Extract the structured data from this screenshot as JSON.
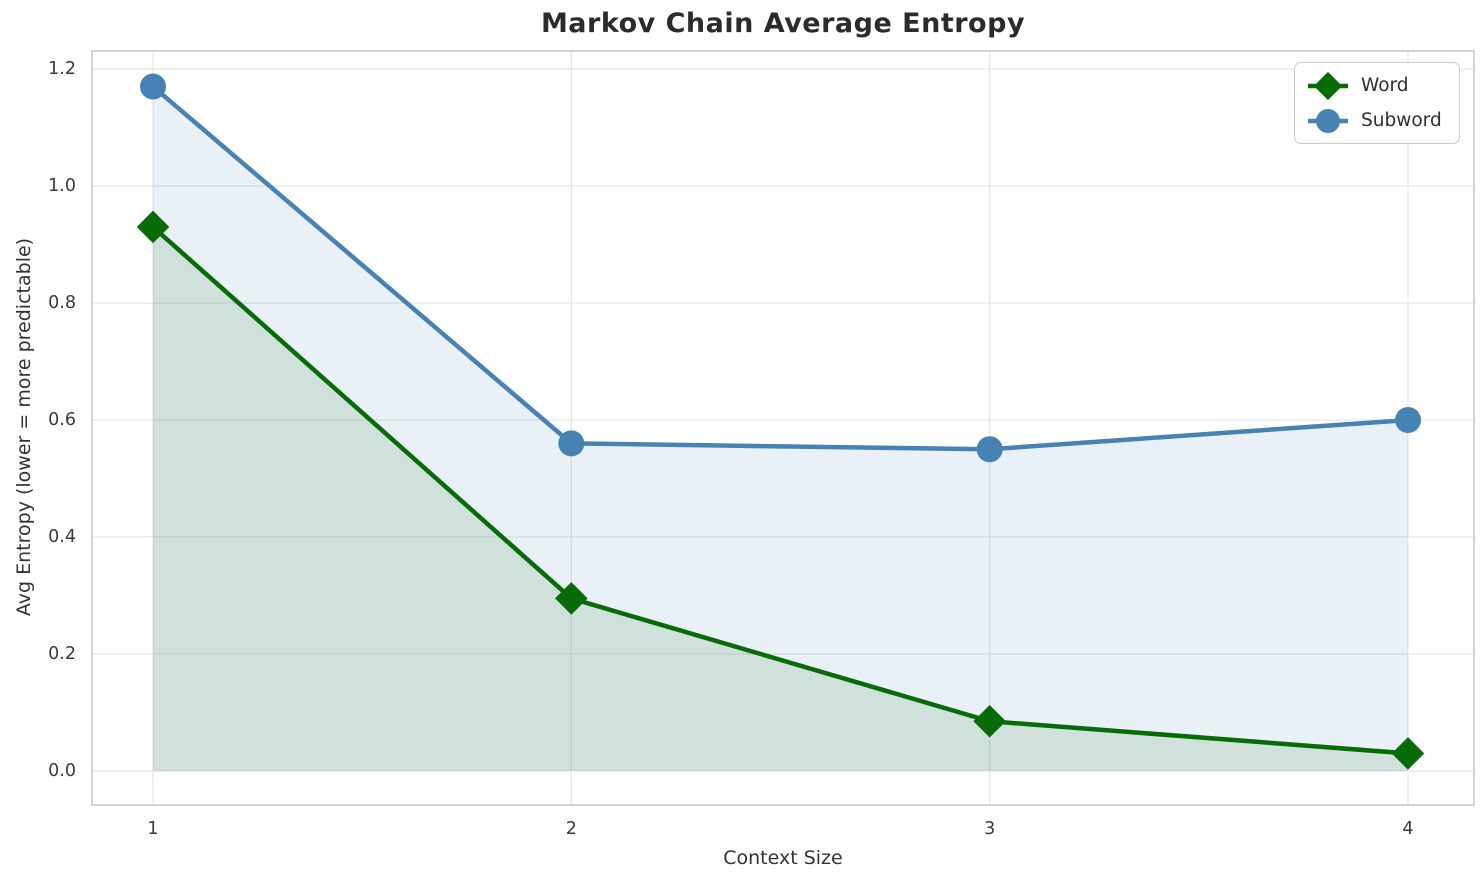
{
  "title": "Markov Chain Average Entropy",
  "chart_data": {
    "type": "line",
    "title": "Markov Chain Average Entropy",
    "xlabel": "Context Size",
    "ylabel": "Avg Entropy (lower = more predictable)",
    "x": [
      1,
      2,
      3,
      4
    ],
    "yticks": [
      0.0,
      0.2,
      0.4,
      0.6,
      0.8,
      1.0,
      1.2
    ],
    "ylim": [
      0,
      1.2
    ],
    "grid": true,
    "legend_position": "upper-right",
    "series": [
      {
        "name": "Word",
        "marker": "diamond",
        "color": "#076c07",
        "fill_color": "rgba(7,108,7,0.11)",
        "values": [
          0.93,
          0.295,
          0.085,
          0.03
        ]
      },
      {
        "name": "Subword",
        "marker": "circle",
        "color": "#4682b4",
        "fill_color": "rgba(70,130,180,0.12)",
        "values": [
          1.17,
          0.56,
          0.55,
          0.6
        ]
      }
    ]
  }
}
